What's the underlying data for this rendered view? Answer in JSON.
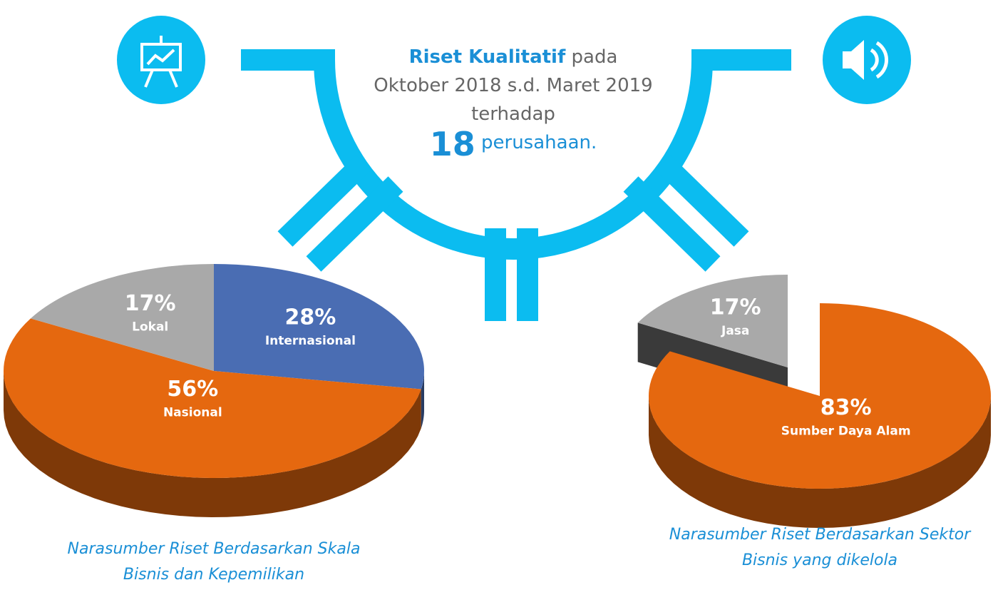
{
  "intro": {
    "highlight": "Riset Kualitatif",
    "text": "pada Oktober 2018 s.d. Maret 2019 terhadap",
    "count": 18,
    "unit": "perusahaan."
  },
  "chart_data": [
    {
      "type": "pie",
      "title": "Narasumber Riset Berdasarkan Skala Bisnis dan Kepemilikan",
      "categories": [
        "Internasional",
        "Nasional",
        "Lokal"
      ],
      "values": [
        28,
        56,
        17
      ],
      "value_labels": [
        "28%",
        "56%",
        "17%"
      ],
      "colors": [
        "#4a6db3",
        "#e5680f",
        "#a9a9a9"
      ]
    },
    {
      "type": "pie",
      "title": "Narasumber Riset Berdasarkan Sektor Bisnis yang dikelola",
      "categories": [
        "Sumber Daya Alam",
        "Jasa"
      ],
      "values": [
        83,
        17
      ],
      "value_labels": [
        "83%",
        "17%"
      ],
      "colors": [
        "#e5680f",
        "#a9a9a9"
      ]
    }
  ]
}
